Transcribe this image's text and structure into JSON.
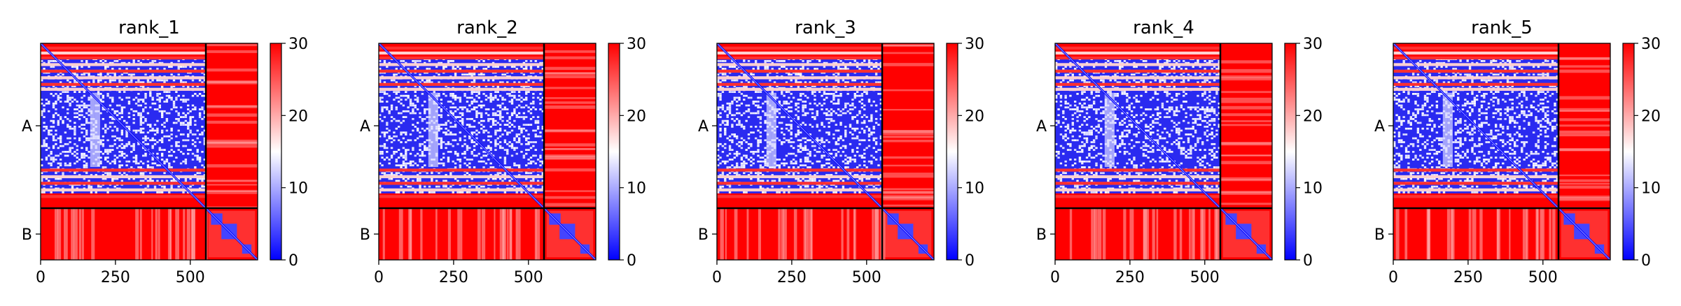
{
  "chart_data": [
    {
      "type": "heatmap",
      "title": "rank_1",
      "x_range": [
        0,
        725
      ],
      "x_ticks": [
        0,
        250,
        500
      ],
      "chain_boundary": 552,
      "y_tick_labels": [
        "A",
        "B"
      ],
      "colorbar": {
        "min": 0,
        "max": 30,
        "ticks": [
          0,
          10,
          20,
          30
        ],
        "colors": [
          "#0000ff",
          "#ffffff",
          "#ff0000"
        ]
      }
    },
    {
      "type": "heatmap",
      "title": "rank_2",
      "x_range": [
        0,
        725
      ],
      "x_ticks": [
        0,
        250,
        500
      ],
      "chain_boundary": 552,
      "y_tick_labels": [
        "A",
        "B"
      ],
      "colorbar": {
        "min": 0,
        "max": 30,
        "ticks": [
          0,
          10,
          20,
          30
        ],
        "colors": [
          "#0000ff",
          "#ffffff",
          "#ff0000"
        ]
      }
    },
    {
      "type": "heatmap",
      "title": "rank_3",
      "x_range": [
        0,
        725
      ],
      "x_ticks": [
        0,
        250,
        500
      ],
      "chain_boundary": 552,
      "y_tick_labels": [
        "A",
        "B"
      ],
      "colorbar": {
        "min": 0,
        "max": 30,
        "ticks": [
          0,
          10,
          20,
          30
        ],
        "colors": [
          "#0000ff",
          "#ffffff",
          "#ff0000"
        ]
      }
    },
    {
      "type": "heatmap",
      "title": "rank_4",
      "x_range": [
        0,
        725
      ],
      "x_ticks": [
        0,
        250,
        500
      ],
      "chain_boundary": 552,
      "y_tick_labels": [
        "A",
        "B"
      ],
      "colorbar": {
        "min": 0,
        "max": 30,
        "ticks": [
          0,
          10,
          20,
          30
        ],
        "colors": [
          "#0000ff",
          "#ffffff",
          "#ff0000"
        ]
      }
    },
    {
      "type": "heatmap",
      "title": "rank_5",
      "x_range": [
        0,
        725
      ],
      "x_ticks": [
        0,
        250,
        500
      ],
      "chain_boundary": 552,
      "y_tick_labels": [
        "A",
        "B"
      ],
      "colorbar": {
        "min": 0,
        "max": 30,
        "ticks": [
          0,
          10,
          20,
          30
        ],
        "colors": [
          "#0000ff",
          "#ffffff",
          "#ff0000"
        ]
      }
    }
  ]
}
